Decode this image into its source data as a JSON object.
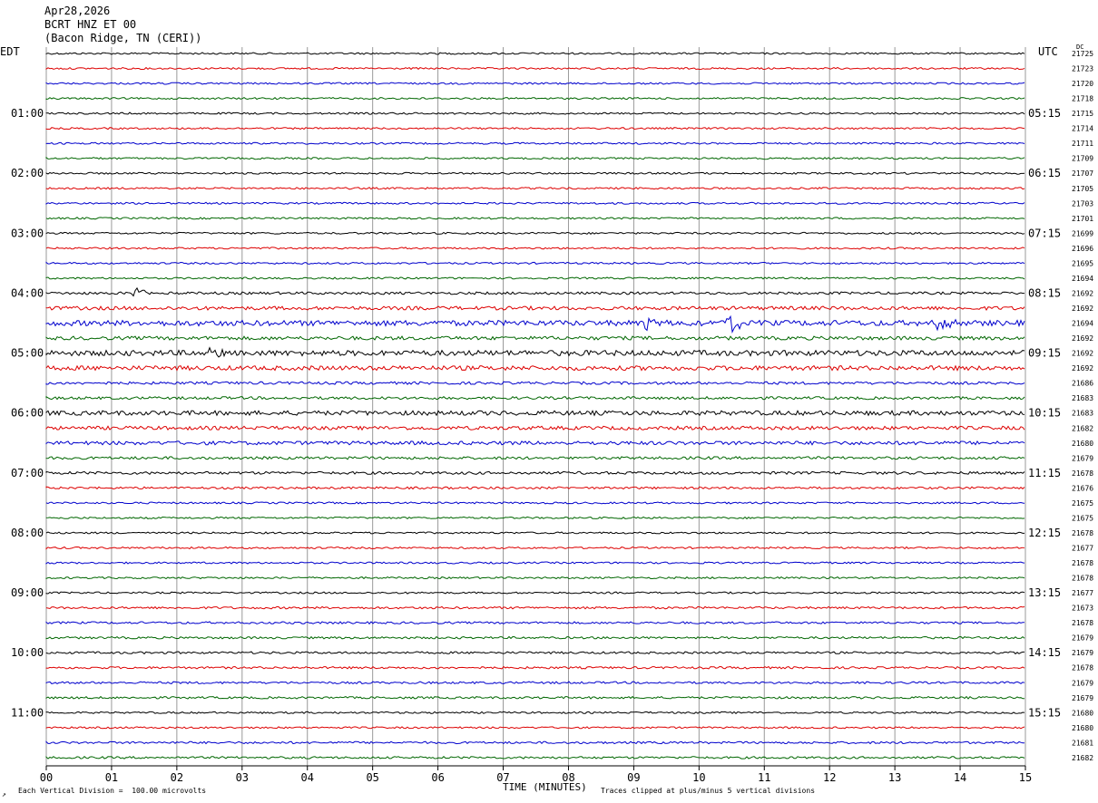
{
  "header": {
    "date": "Apr28,2026",
    "channel": "BCRT HNZ ET 00",
    "location": "(Bacon Ridge, TN (CERI))"
  },
  "left_tz": "EDT",
  "right_tz": "UTC",
  "dc_label": "DC",
  "chart_data": {
    "type": "line",
    "subtype": "helicorder seismogram",
    "xlabel": "TIME (MINUTES)",
    "xlim": [
      0,
      15
    ],
    "x_ticks": [
      "00",
      "01",
      "02",
      "03",
      "04",
      "05",
      "06",
      "07",
      "08",
      "09",
      "10",
      "11",
      "12",
      "13",
      "14",
      "15"
    ],
    "rows_per_hour": 4,
    "row_colors": [
      "#000000",
      "#dd0000",
      "#0000cc",
      "#006600"
    ],
    "left_hour_labels": [
      "01:00",
      "02:00",
      "03:00",
      "04:00",
      "05:00",
      "06:00",
      "07:00",
      "08:00",
      "09:00",
      "10:00",
      "11:00"
    ],
    "right_hour_labels": [
      "05:15",
      "06:15",
      "07:15",
      "08:15",
      "09:15",
      "10:15",
      "11:15",
      "12:15",
      "13:15",
      "14:15",
      "15:15"
    ],
    "dc_offsets": [
      21725,
      21723,
      21720,
      21718,
      21715,
      21714,
      21711,
      21709,
      21707,
      21705,
      21703,
      21701,
      21699,
      21696,
      21695,
      21694,
      21692,
      21692,
      21694,
      21692,
      21692,
      21692,
      21686,
      21683,
      21683,
      21682,
      21680,
      21679,
      21678,
      21676,
      21675,
      21675,
      21678,
      21677,
      21678,
      21678,
      21677,
      21673,
      21678,
      21679,
      21679,
      21678,
      21679,
      21679,
      21680,
      21680,
      21681,
      21682
    ],
    "row_noise": [
      1,
      1,
      1,
      1,
      1,
      1,
      1,
      1,
      1,
      1,
      1,
      1,
      1,
      1,
      1,
      1,
      1.4,
      2,
      3,
      2,
      3,
      2.5,
      1.5,
      1.5,
      2.5,
      2,
      2,
      1.5,
      1.5,
      1.2,
      1,
      1,
      1,
      1,
      1,
      1,
      1,
      1.2,
      1.2,
      1.2,
      1.2,
      1.2,
      1.2,
      1.2,
      1,
      1,
      1.2,
      1.2
    ],
    "events": [
      {
        "row": 16,
        "minute": 1.35,
        "amplitude": 10
      },
      {
        "row": 18,
        "minute": 9.15,
        "amplitude": 14
      },
      {
        "row": 18,
        "minute": 10.42,
        "amplitude": 26
      },
      {
        "row": 18,
        "minute": 13.65,
        "amplitude": 11
      },
      {
        "row": 20,
        "minute": 2.5,
        "amplitude": 6
      }
    ]
  },
  "footer": {
    "scale_note": "Each Vertical Division =  100.00 microvolts",
    "clip_note": "Traces clipped at plus/minus 5 vertical divisions",
    "corner_mark": "↗"
  }
}
